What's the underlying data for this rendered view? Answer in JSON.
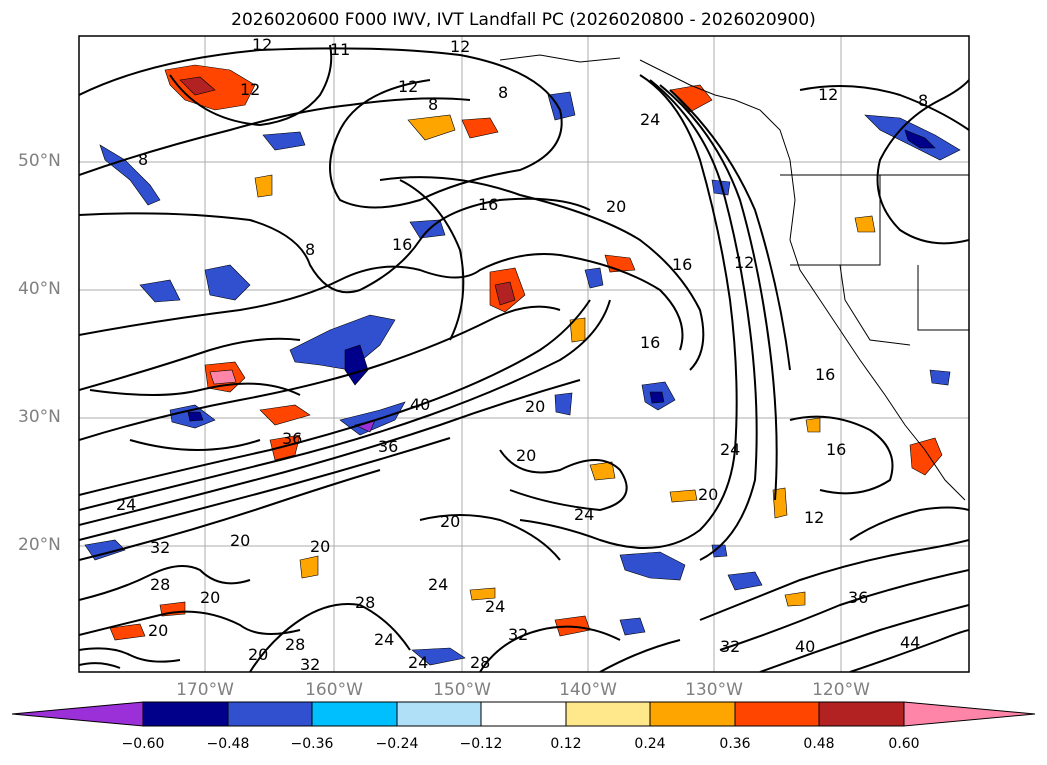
{
  "title": "2026020600 F000 IWV, IVT Landfall PC (2026020800 - 2026020900)",
  "latitude_labels": [
    "50°N",
    "40°N",
    "30°N",
    "20°N"
  ],
  "longitude_labels": [
    "170°W",
    "160°W",
    "150°W",
    "140°W",
    "130°W",
    "120°W"
  ],
  "colorbar": {
    "ticks": [
      "−0.60",
      "−0.48",
      "−0.36",
      "−0.24",
      "−0.12",
      "0.12",
      "0.24",
      "0.36",
      "0.48",
      "0.60"
    ],
    "colors": [
      "#9b30d9",
      "#00008b",
      "#3050d0",
      "#00bfff",
      "#b0e0f8",
      "#ffffff",
      "#ffe88c",
      "#ffa500",
      "#ff4500",
      "#b22222",
      "#ff85a8"
    ]
  },
  "contour_labels": [
    "12",
    "11",
    "12",
    "12",
    "12",
    "8",
    "8",
    "8",
    "8",
    "8",
    "12",
    "24",
    "16",
    "16",
    "20",
    "16",
    "12",
    "16",
    "16",
    "16",
    "12",
    "20",
    "20",
    "24",
    "24",
    "20",
    "20",
    "24",
    "24",
    "20",
    "28",
    "32",
    "36",
    "40",
    "36",
    "24",
    "20",
    "24",
    "28",
    "32",
    "20",
    "20",
    "24",
    "28",
    "32",
    "28",
    "20",
    "36",
    "40",
    "44",
    "32"
  ]
}
